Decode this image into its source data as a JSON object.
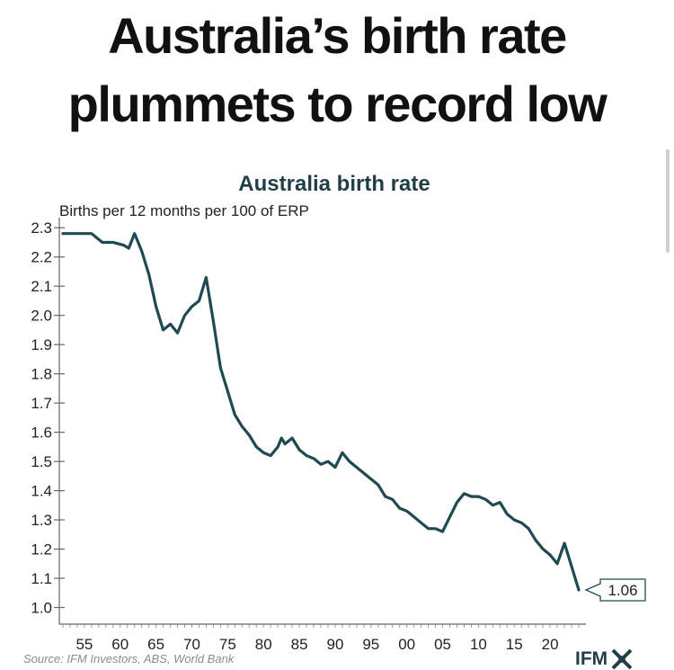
{
  "headline": {
    "line1": "Australia’s birth rate",
    "line2": "plummets to record low"
  },
  "source": "Source: IFM Investors, ABS, World Bank",
  "brand": {
    "name": "IFM",
    "icon": "ifm-logo-icon"
  },
  "colors": {
    "line": "#1e4a52",
    "text": "#222222",
    "axis": "#666666"
  },
  "chart_data": {
    "type": "line",
    "title": "Australia birth rate",
    "ylabel": "Births per 12 months per 100 of ERP",
    "xlabel": "",
    "xlim": [
      1951.5,
      2025
    ],
    "ylim": [
      0.98,
      2.31
    ],
    "x_ticks": [
      1955,
      1960,
      1965,
      1970,
      1975,
      1980,
      1985,
      1990,
      1995,
      2000,
      2005,
      2010,
      2015,
      2020
    ],
    "x_tick_labels": [
      "55",
      "60",
      "65",
      "70",
      "75",
      "80",
      "85",
      "90",
      "95",
      "00",
      "05",
      "10",
      "15",
      "20"
    ],
    "y_ticks": [
      1.0,
      1.1,
      1.2,
      1.3,
      1.4,
      1.5,
      1.6,
      1.7,
      1.8,
      1.9,
      2.0,
      2.1,
      2.2,
      2.3
    ],
    "y_tick_labels": [
      "1.0",
      "1.1",
      "1.2",
      "1.3",
      "1.4",
      "1.5",
      "1.6",
      "1.7",
      "1.8",
      "1.9",
      "2.0",
      "2.1",
      "2.2",
      "2.3"
    ],
    "grid": false,
    "series": [
      {
        "x": [
          1952,
          1956,
          1957.5,
          1959,
          1960.5,
          1961.2,
          1962,
          1963,
          1964,
          1965,
          1966,
          1967,
          1968,
          1969,
          1970,
          1971,
          1972,
          1973,
          1974,
          1975,
          1976,
          1977,
          1978,
          1979,
          1980,
          1981,
          1982,
          1982.5,
          1983,
          1984,
          1985,
          1986,
          1987,
          1988,
          1989,
          1990,
          1991,
          1992,
          1993,
          1994,
          1995,
          1996,
          1997,
          1998,
          1999,
          2000,
          2001,
          2002,
          2003,
          2004,
          2005,
          2006,
          2007,
          2008,
          2009,
          2010,
          2011,
          2012,
          2013,
          2014,
          2015,
          2016,
          2017,
          2018,
          2019,
          2020,
          2021,
          2022,
          2023,
          2024
        ],
        "y": [
          2.28,
          2.28,
          2.25,
          2.25,
          2.24,
          2.23,
          2.28,
          2.22,
          2.14,
          2.03,
          1.95,
          1.97,
          1.94,
          2.0,
          2.03,
          2.05,
          2.13,
          1.98,
          1.82,
          1.74,
          1.66,
          1.62,
          1.59,
          1.55,
          1.53,
          1.52,
          1.55,
          1.58,
          1.56,
          1.58,
          1.54,
          1.52,
          1.51,
          1.49,
          1.5,
          1.48,
          1.53,
          1.5,
          1.48,
          1.46,
          1.44,
          1.42,
          1.38,
          1.37,
          1.34,
          1.33,
          1.31,
          1.29,
          1.27,
          1.27,
          1.26,
          1.31,
          1.36,
          1.39,
          1.38,
          1.38,
          1.37,
          1.35,
          1.36,
          1.32,
          1.3,
          1.29,
          1.27,
          1.23,
          1.2,
          1.18,
          1.15,
          1.22,
          1.14,
          1.06
        ]
      }
    ],
    "annotation": {
      "text": "1.06",
      "x": 2024,
      "y": 1.06
    }
  }
}
